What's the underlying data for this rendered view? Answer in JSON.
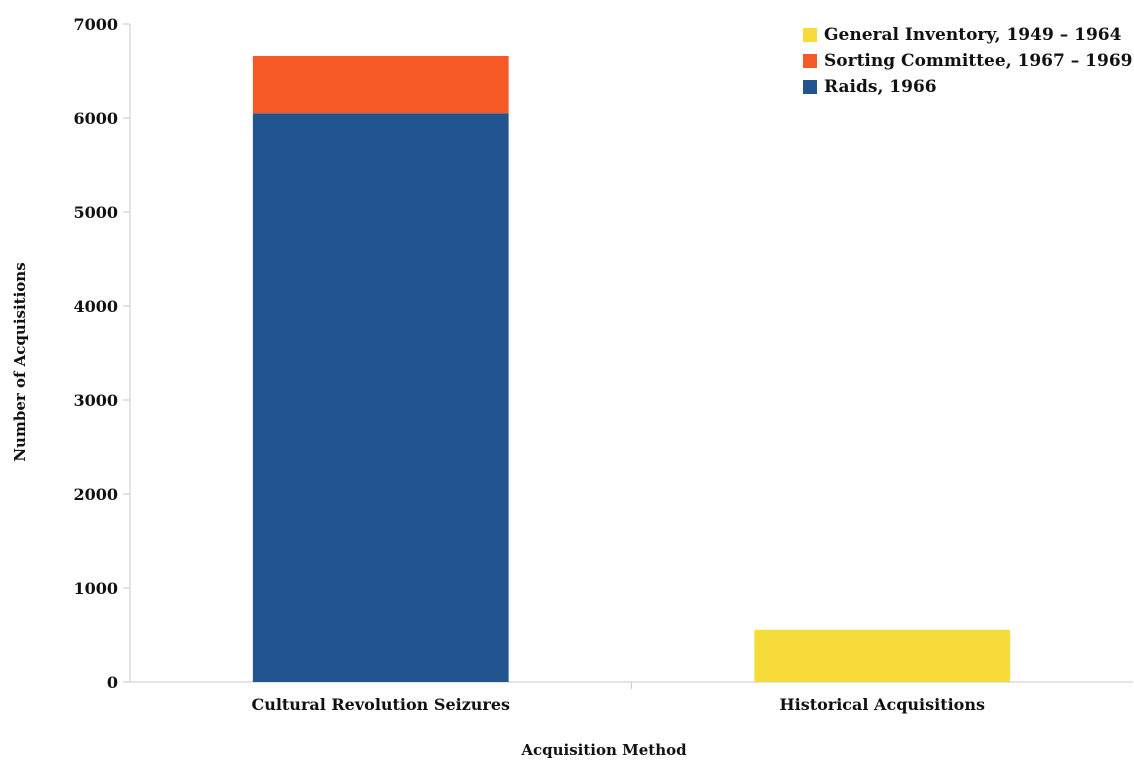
{
  "chart_data": {
    "type": "bar",
    "stacked": true,
    "categories": [
      "Cultural Revolution Seizures",
      "Historical Acquisitions"
    ],
    "series": [
      {
        "name": "Raids, 1966",
        "color": "#22548f",
        "values": [
          6050,
          0
        ]
      },
      {
        "name": "Sorting Committee, 1967 – 1969",
        "color": "#f55a26",
        "values": [
          610,
          0
        ]
      },
      {
        "name": "General Inventory, 1949 – 1964",
        "color": "#f7db3a",
        "values": [
          0,
          555
        ]
      }
    ],
    "legend_order": [
      2,
      1,
      0
    ],
    "title": "",
    "xlabel": "Acquisition Method",
    "ylabel": "Number of Acquisitions",
    "ylim": [
      0,
      7000
    ],
    "yticks": [
      0,
      1000,
      2000,
      3000,
      4000,
      5000,
      6000,
      7000
    ],
    "grid": false,
    "legend_position": "top-right"
  }
}
